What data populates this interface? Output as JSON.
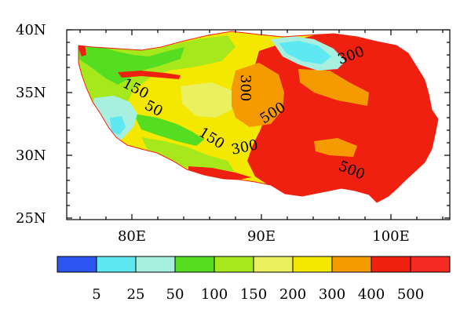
{
  "map": {
    "lat_labels": [
      "40N",
      "35N",
      "30N",
      "25N"
    ],
    "lon_labels": [
      "80E",
      "90E",
      "100E"
    ],
    "contour_labels": [
      "150",
      "50",
      "300",
      "500",
      "150",
      "300",
      "300",
      "500"
    ]
  },
  "colorbar": {
    "ticks": [
      "5",
      "25",
      "50",
      "100",
      "150",
      "200",
      "300",
      "400",
      "500"
    ],
    "colors": [
      "#2b55f0",
      "#5ee8f2",
      "#a7f0e0",
      "#55dd22",
      "#a6e81c",
      "#eaf060",
      "#f4e800",
      "#f59a00",
      "#f02010",
      "#f52a20"
    ]
  },
  "colors": {
    "very_low": "#5ee8f2",
    "low": "#a7f0e0",
    "low_mid": "#55dd22",
    "mid": "#a6e81c",
    "mid_high": "#eaf060",
    "high": "#f4e800",
    "very_high": "#f59a00",
    "extreme": "#f02010"
  }
}
